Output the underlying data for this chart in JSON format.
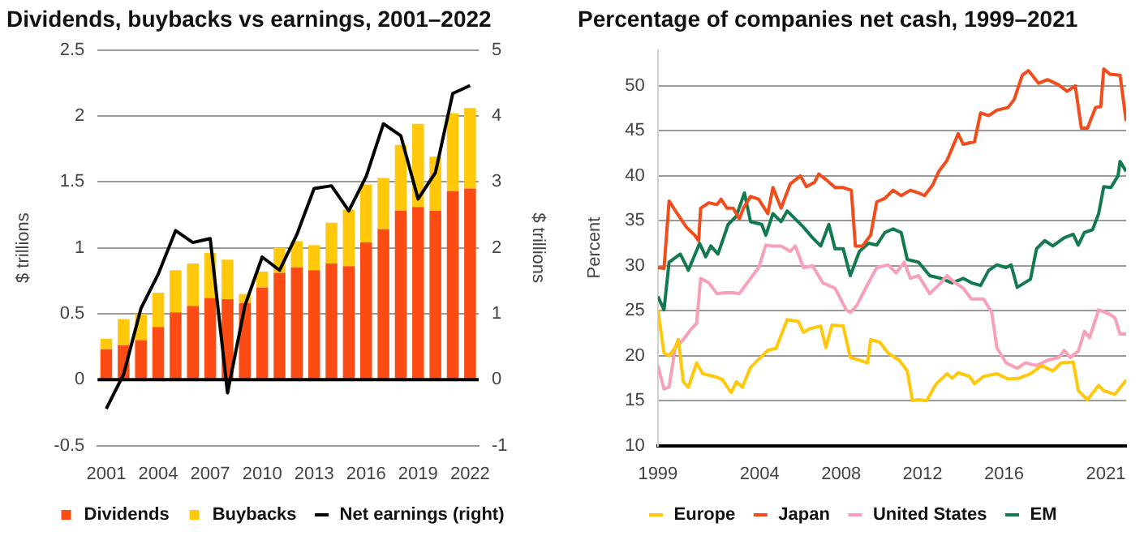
{
  "chart_data": [
    {
      "type": "bar",
      "title": "Dividends, buybacks vs earnings, 2001–2022",
      "ylabel": "$ trillions",
      "y2label": "$ trillions",
      "categories": [
        "2001",
        null,
        null,
        "2004",
        null,
        null,
        "2007",
        null,
        null,
        "2010",
        null,
        null,
        "2013",
        null,
        null,
        "2016",
        null,
        null,
        "2019",
        null,
        null,
        "2022"
      ],
      "stacked": true,
      "ylim": [
        -0.5,
        2.5
      ],
      "yticks": [
        -0.5,
        0,
        0.5,
        1,
        1.5,
        2,
        2.5
      ],
      "y2lim": [
        -1,
        5
      ],
      "y2ticks": [
        -1,
        0,
        1,
        2,
        3,
        4,
        5
      ],
      "grid": "y",
      "legend": "bottom",
      "marker": "none",
      "ref_lines": [
        {
          "axis": "y",
          "value": 0,
          "color": "#000000"
        }
      ],
      "series": [
        {
          "name": "Dividends",
          "color": "#fc4c14",
          "values": [
            0.23,
            0.26,
            0.3,
            0.4,
            0.51,
            0.56,
            0.62,
            0.61,
            0.58,
            0.7,
            0.81,
            0.85,
            0.83,
            0.88,
            0.86,
            1.04,
            1.14,
            1.28,
            1.31,
            1.28,
            1.43,
            1.45
          ]
        },
        {
          "name": "Buybacks",
          "color": "#ffc80a",
          "values": [
            0.08,
            0.2,
            0.2,
            0.26,
            0.32,
            0.32,
            0.34,
            0.3,
            0.07,
            0.12,
            0.19,
            0.2,
            0.19,
            0.31,
            0.43,
            0.44,
            0.39,
            0.5,
            0.63,
            0.41,
            0.59,
            0.61
          ]
        },
        {
          "name": "Net earnings (right)",
          "type": "line",
          "axis": "y2",
          "color": "#000000",
          "values": [
            -0.44,
            0.08,
            1.08,
            1.6,
            2.26,
            2.08,
            2.14,
            -0.2,
            1.12,
            1.86,
            1.66,
            2.2,
            2.9,
            2.94,
            2.56,
            3.08,
            3.88,
            3.7,
            2.74,
            3.14,
            4.34,
            4.46
          ]
        }
      ]
    },
    {
      "type": "line",
      "title": "Percentage of companies net cash, 1999–2021",
      "ylabel": "Percent",
      "xlim": [
        1999,
        2022
      ],
      "xticks": [
        1999,
        2004,
        2008,
        2012,
        2016,
        2021
      ],
      "ylim": [
        10,
        54
      ],
      "yticks": [
        10,
        15,
        20,
        25,
        30,
        35,
        40,
        45,
        50
      ],
      "grid": "y",
      "legend": "bottom",
      "marker": "none",
      "series": [
        {
          "name": "Europe",
          "color": "#ffc80a",
          "x": [
            1999.0,
            1999.3,
            1999.55,
            1999.85,
            2000.0,
            2000.25,
            2000.5,
            2000.9,
            2001.2,
            2001.75,
            2002.15,
            2002.6,
            2002.85,
            2003.15,
            2003.55,
            2003.95,
            2004.4,
            2004.8,
            2005.35,
            2005.9,
            2006.15,
            2006.45,
            2007.0,
            2007.25,
            2007.55,
            2008.1,
            2008.45,
            2008.9,
            2009.3,
            2009.45,
            2009.9,
            2010.3,
            2010.85,
            2011.25,
            2011.5,
            2011.8,
            2012.2,
            2012.65,
            2013.2,
            2013.45,
            2013.75,
            2014.3,
            2014.55,
            2015.0,
            2015.65,
            2016.2,
            2016.75,
            2017.3,
            2017.85,
            2018.4,
            2018.8,
            2019.4,
            2019.65,
            2020.1,
            2020.65,
            2020.9,
            2021.45,
            2022.0
          ],
          "values": [
            25.1,
            20.3,
            20.0,
            20.9,
            21.8,
            17.1,
            16.5,
            19.2,
            18.0,
            17.7,
            17.4,
            15.9,
            17.1,
            16.5,
            18.7,
            19.6,
            20.6,
            20.8,
            24.0,
            23.8,
            22.6,
            23.0,
            23.3,
            20.9,
            23.4,
            23.3,
            19.8,
            19.5,
            19.2,
            21.8,
            21.5,
            20.3,
            19.5,
            18.3,
            15.0,
            15.1,
            15.0,
            16.8,
            18.0,
            17.5,
            18.1,
            17.7,
            16.9,
            17.7,
            18.0,
            17.4,
            17.5,
            18.0,
            18.9,
            18.3,
            19.2,
            19.3,
            16.1,
            15.1,
            16.7,
            16.1,
            15.7,
            17.3
          ]
        },
        {
          "name": "Japan",
          "color": "#f24c1c",
          "x": [
            1999.0,
            1999.3,
            1999.55,
            1999.95,
            2000.4,
            2000.8,
            2001.0,
            2001.1,
            2001.5,
            2001.9,
            2002.1,
            2002.4,
            2002.7,
            2003.0,
            2003.2,
            2003.55,
            2003.95,
            2004.4,
            2004.65,
            2005.05,
            2005.5,
            2006.0,
            2006.3,
            2006.7,
            2006.9,
            2007.25,
            2007.7,
            2008.1,
            2008.5,
            2008.7,
            2009.05,
            2009.45,
            2009.75,
            2010.15,
            2010.55,
            2010.95,
            2011.4,
            2011.8,
            2012.1,
            2012.5,
            2012.8,
            2013.2,
            2013.75,
            2014.0,
            2014.55,
            2014.85,
            2015.25,
            2015.65,
            2016.2,
            2016.5,
            2016.9,
            2017.2,
            2017.7,
            2018.15,
            2018.7,
            2019.1,
            2019.5,
            2019.8,
            2020.1,
            2020.5,
            2020.75,
            2020.9,
            2021.2,
            2021.7,
            2022.0
          ],
          "values": [
            29.8,
            29.7,
            37.2,
            35.8,
            34.3,
            33.4,
            32.8,
            36.4,
            37.0,
            36.8,
            37.4,
            36.4,
            36.4,
            35.2,
            36.4,
            37.7,
            37.4,
            35.8,
            38.7,
            36.4,
            39.1,
            40.0,
            38.8,
            39.3,
            40.2,
            39.6,
            38.7,
            38.7,
            38.4,
            32.2,
            32.2,
            33.4,
            37.1,
            37.5,
            38.4,
            37.8,
            38.4,
            38.1,
            37.8,
            39.0,
            40.5,
            41.7,
            44.7,
            43.5,
            43.8,
            47.0,
            46.7,
            47.3,
            47.6,
            48.5,
            51.2,
            51.7,
            50.3,
            50.7,
            50.1,
            49.4,
            50.0,
            45.3,
            45.3,
            47.6,
            47.7,
            51.9,
            51.3,
            51.2,
            46.1
          ]
        },
        {
          "name": "United States",
          "color": "#f7a0b8",
          "x": [
            1999.0,
            1999.3,
            1999.55,
            1999.85,
            2000.25,
            2000.65,
            2000.9,
            2001.1,
            2001.5,
            2001.9,
            2002.3,
            2002.7,
            2003.0,
            2003.55,
            2003.95,
            2004.3,
            2004.65,
            2005.05,
            2005.5,
            2005.75,
            2006.15,
            2006.6,
            2007.1,
            2007.7,
            2008.25,
            2008.45,
            2008.8,
            2009.2,
            2009.75,
            2010.3,
            2010.7,
            2011.1,
            2011.4,
            2011.8,
            2012.35,
            2012.9,
            2013.2,
            2013.6,
            2014.0,
            2014.4,
            2015.0,
            2015.4,
            2015.65,
            2016.1,
            2016.65,
            2017.05,
            2017.6,
            2018.15,
            2018.7,
            2018.95,
            2019.25,
            2019.65,
            2019.95,
            2020.2,
            2020.65,
            2021.2,
            2021.45,
            2021.7,
            2022.0
          ],
          "values": [
            18.9,
            16.3,
            16.5,
            20.9,
            21.8,
            23.0,
            23.6,
            28.6,
            28.1,
            26.9,
            27.0,
            27.0,
            26.9,
            28.6,
            29.8,
            32.3,
            32.2,
            32.2,
            31.6,
            32.2,
            29.8,
            30.0,
            28.1,
            27.5,
            25.1,
            24.8,
            25.7,
            27.5,
            29.8,
            30.1,
            29.2,
            30.4,
            28.6,
            28.9,
            26.9,
            28.1,
            28.9,
            28.1,
            27.5,
            26.3,
            26.3,
            24.8,
            20.9,
            19.2,
            18.6,
            19.2,
            18.9,
            19.5,
            19.8,
            20.6,
            19.8,
            20.5,
            22.7,
            22.0,
            25.1,
            24.6,
            24.2,
            22.4,
            22.4
          ]
        },
        {
          "name": "EM",
          "color": "#127a4e",
          "x": [
            1999.0,
            1999.3,
            1999.55,
            2000.1,
            2000.5,
            2001.05,
            2001.35,
            2001.6,
            2001.95,
            2002.45,
            2002.85,
            2003.25,
            2003.55,
            2004.1,
            2004.3,
            2004.65,
            2005.05,
            2005.35,
            2005.75,
            2006.15,
            2006.6,
            2007.0,
            2007.4,
            2007.7,
            2008.1,
            2008.45,
            2008.9,
            2009.35,
            2009.75,
            2010.15,
            2010.55,
            2010.95,
            2011.25,
            2011.8,
            2012.35,
            2012.9,
            2013.45,
            2014.0,
            2014.4,
            2014.85,
            2015.25,
            2015.65,
            2016.1,
            2016.35,
            2016.65,
            2017.3,
            2017.6,
            2018.0,
            2018.4,
            2018.95,
            2019.4,
            2019.65,
            2019.95,
            2020.35,
            2020.65,
            2020.9,
            2021.25,
            2021.6,
            2021.7,
            2022.0
          ],
          "values": [
            26.6,
            25.1,
            30.4,
            31.3,
            29.5,
            32.5,
            31.0,
            32.2,
            31.3,
            34.6,
            35.5,
            38.1,
            34.9,
            34.6,
            33.4,
            35.8,
            34.9,
            36.1,
            35.2,
            34.3,
            33.1,
            32.2,
            34.6,
            31.9,
            31.9,
            28.9,
            31.6,
            32.5,
            32.3,
            33.7,
            34.1,
            33.7,
            30.7,
            30.4,
            28.9,
            28.6,
            28.1,
            28.6,
            28.1,
            27.8,
            29.5,
            30.1,
            29.8,
            30.1,
            27.6,
            28.5,
            31.9,
            32.8,
            32.2,
            33.1,
            33.5,
            32.3,
            33.7,
            34.0,
            35.8,
            38.8,
            38.7,
            40.0,
            41.6,
            40.5
          ]
        }
      ]
    }
  ]
}
